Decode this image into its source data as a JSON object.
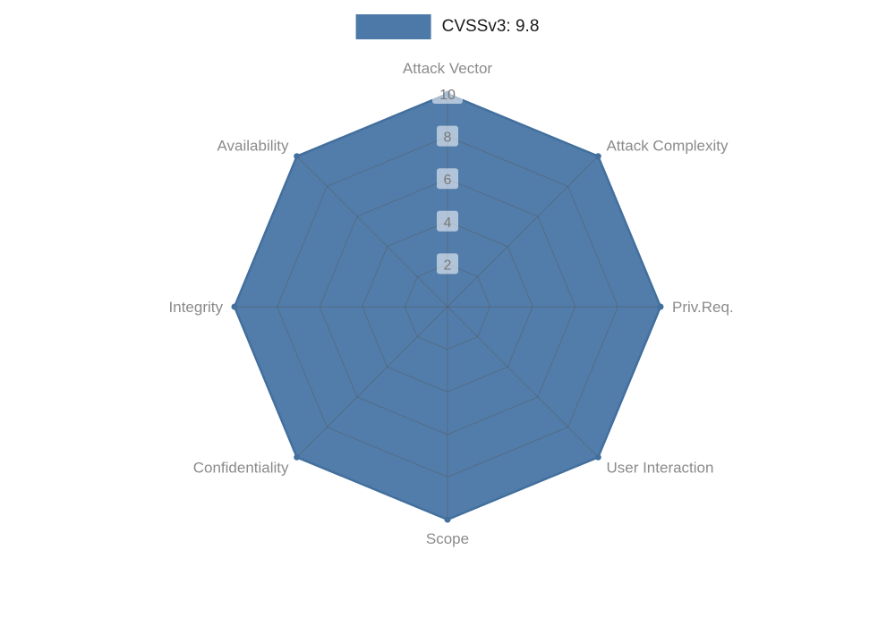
{
  "legend": {
    "label": "CVSSv3: 9.8",
    "swatch_color": "#4c79a7"
  },
  "chart_data": {
    "type": "radar",
    "title": "CVSSv3: 9.8",
    "categories": [
      "Attack Vector",
      "Attack Complexity",
      "Priv.Req.",
      "User Interaction",
      "Scope",
      "Confidentiality",
      "Integrity",
      "Availability"
    ],
    "series": [
      {
        "name": "CVSSv3: 9.8",
        "values": [
          10,
          10,
          10,
          10,
          10,
          10,
          10,
          10
        ]
      }
    ],
    "ticks": [
      2,
      4,
      6,
      8,
      10
    ],
    "rlim": [
      0,
      10
    ],
    "grid": true,
    "legend_position": "top-center",
    "fill_color": "#4c79a7",
    "edge_color": "#426f9d",
    "grid_color": "#555555",
    "tick_label_color": "#787878",
    "axis_label_color": "#8b8b8b"
  }
}
